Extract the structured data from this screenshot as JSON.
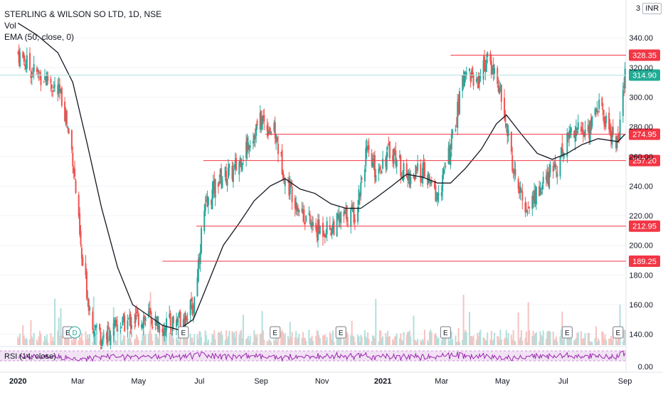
{
  "header": {
    "symbol": "STERLING & WILSON SO LTD, 1D, NSE",
    "vol_label": "Vol",
    "ema_label": "EMA (50, close, 0)",
    "currency": "INR",
    "currency_prefix": "3"
  },
  "rsi": {
    "label": "RSI (14, close)",
    "axis_label": "0.00"
  },
  "colors": {
    "up": "#26a69a",
    "down": "#ef5350",
    "ema": "#131722",
    "level": "#f23645",
    "rsi_line": "#9c27b0",
    "rsi_band": "#e1bee7",
    "last_price": "#22ab94"
  },
  "chart_data": {
    "type": "candlestick",
    "title": "STERLING & WILSON SO LTD, 1D, NSE",
    "ylim": [
      135,
      355
    ],
    "y_ticks": [
      140,
      160,
      180,
      200,
      220,
      240,
      260,
      280,
      300,
      320,
      340
    ],
    "x_tick_labels": [
      "2020",
      "Mar",
      "May",
      "Jul",
      "Sep",
      "Nov",
      "2021",
      "Mar",
      "May",
      "Jul",
      "Sep"
    ],
    "price_series": [
      [
        "2020-01-01",
        330
      ],
      [
        "2020-01-15",
        318
      ],
      [
        "2020-02-01",
        312
      ],
      [
        "2020-02-15",
        298
      ],
      [
        "2020-02-25",
        260
      ],
      [
        "2020-03-05",
        190
      ],
      [
        "2020-03-15",
        150
      ],
      [
        "2020-03-25",
        138
      ],
      [
        "2020-04-10",
        145
      ],
      [
        "2020-04-25",
        150
      ],
      [
        "2020-05-10",
        152
      ],
      [
        "2020-05-25",
        145
      ],
      [
        "2020-06-10",
        150
      ],
      [
        "2020-06-25",
        158
      ],
      [
        "2020-07-05",
        220
      ],
      [
        "2020-07-20",
        245
      ],
      [
        "2020-08-05",
        250
      ],
      [
        "2020-08-20",
        270
      ],
      [
        "2020-09-01",
        285
      ],
      [
        "2020-09-15",
        275
      ],
      [
        "2020-09-25",
        245
      ],
      [
        "2020-10-10",
        225
      ],
      [
        "2020-10-25",
        210
      ],
      [
        "2020-11-10",
        212
      ],
      [
        "2020-11-25",
        220
      ],
      [
        "2020-12-05",
        222
      ],
      [
        "2020-12-15",
        262
      ],
      [
        "2020-12-25",
        250
      ],
      [
        "2021-01-10",
        265
      ],
      [
        "2021-01-25",
        245
      ],
      [
        "2021-02-10",
        250
      ],
      [
        "2021-02-25",
        232
      ],
      [
        "2021-03-10",
        265
      ],
      [
        "2021-03-25",
        320
      ],
      [
        "2021-04-05",
        310
      ],
      [
        "2021-04-15",
        325
      ],
      [
        "2021-04-25",
        315
      ],
      [
        "2021-05-05",
        280
      ],
      [
        "2021-05-15",
        240
      ],
      [
        "2021-05-25",
        225
      ],
      [
        "2021-06-10",
        240
      ],
      [
        "2021-06-25",
        255
      ],
      [
        "2021-07-10",
        280
      ],
      [
        "2021-07-25",
        275
      ],
      [
        "2021-08-05",
        295
      ],
      [
        "2021-08-15",
        280
      ],
      [
        "2021-08-25",
        268
      ],
      [
        "2021-09-01",
        314.9
      ]
    ],
    "ema50": [
      [
        "2020-01-01",
        350
      ],
      [
        "2020-01-20",
        342
      ],
      [
        "2020-02-10",
        330
      ],
      [
        "2020-02-25",
        310
      ],
      [
        "2020-03-10",
        270
      ],
      [
        "2020-03-25",
        225
      ],
      [
        "2020-04-10",
        185
      ],
      [
        "2020-04-25",
        160
      ],
      [
        "2020-05-10",
        153
      ],
      [
        "2020-05-25",
        146
      ],
      [
        "2020-06-10",
        143
      ],
      [
        "2020-06-25",
        150
      ],
      [
        "2020-07-10",
        175
      ],
      [
        "2020-07-25",
        200
      ],
      [
        "2020-08-10",
        215
      ],
      [
        "2020-08-25",
        230
      ],
      [
        "2020-09-10",
        240
      ],
      [
        "2020-09-25",
        245
      ],
      [
        "2020-10-10",
        238
      ],
      [
        "2020-10-25",
        235
      ],
      [
        "2020-11-10",
        228
      ],
      [
        "2020-11-25",
        225
      ],
      [
        "2020-12-10",
        225
      ],
      [
        "2020-12-25",
        232
      ],
      [
        "2021-01-10",
        240
      ],
      [
        "2021-01-25",
        248
      ],
      [
        "2021-02-10",
        246
      ],
      [
        "2021-02-25",
        242
      ],
      [
        "2021-03-10",
        242
      ],
      [
        "2021-03-25",
        252
      ],
      [
        "2021-04-10",
        265
      ],
      [
        "2021-04-25",
        282
      ],
      [
        "2021-05-05",
        288
      ],
      [
        "2021-05-20",
        275
      ],
      [
        "2021-06-05",
        262
      ],
      [
        "2021-06-20",
        258
      ],
      [
        "2021-07-05",
        262
      ],
      [
        "2021-07-20",
        268
      ],
      [
        "2021-08-05",
        272
      ],
      [
        "2021-08-25",
        270
      ],
      [
        "2021-09-01",
        275
      ]
    ],
    "levels": [
      {
        "value": 328.35,
        "label": "328.35",
        "from": "2021-03-10"
      },
      {
        "value": 274.95,
        "label": "274.95",
        "from": "2020-09-05"
      },
      {
        "value": 257.2,
        "label": "257.20",
        "from": "2020-07-05"
      },
      {
        "value": 212.95,
        "label": "212.95",
        "from": "2020-06-28"
      },
      {
        "value": 189.25,
        "label": "189.25",
        "from": "2020-05-25"
      }
    ],
    "last_price": {
      "value": 314.9,
      "label": "314.90"
    },
    "events": [
      {
        "date": "2020-02-20",
        "label": "E"
      },
      {
        "date": "2020-02-27",
        "label": "D"
      },
      {
        "date": "2020-06-15",
        "label": "E"
      },
      {
        "date": "2020-09-15",
        "label": "E"
      },
      {
        "date": "2020-11-20",
        "label": "E"
      },
      {
        "date": "2021-03-05",
        "label": "E"
      },
      {
        "date": "2021-07-05",
        "label": "E"
      },
      {
        "date": "2021-08-25",
        "label": "E"
      }
    ]
  }
}
